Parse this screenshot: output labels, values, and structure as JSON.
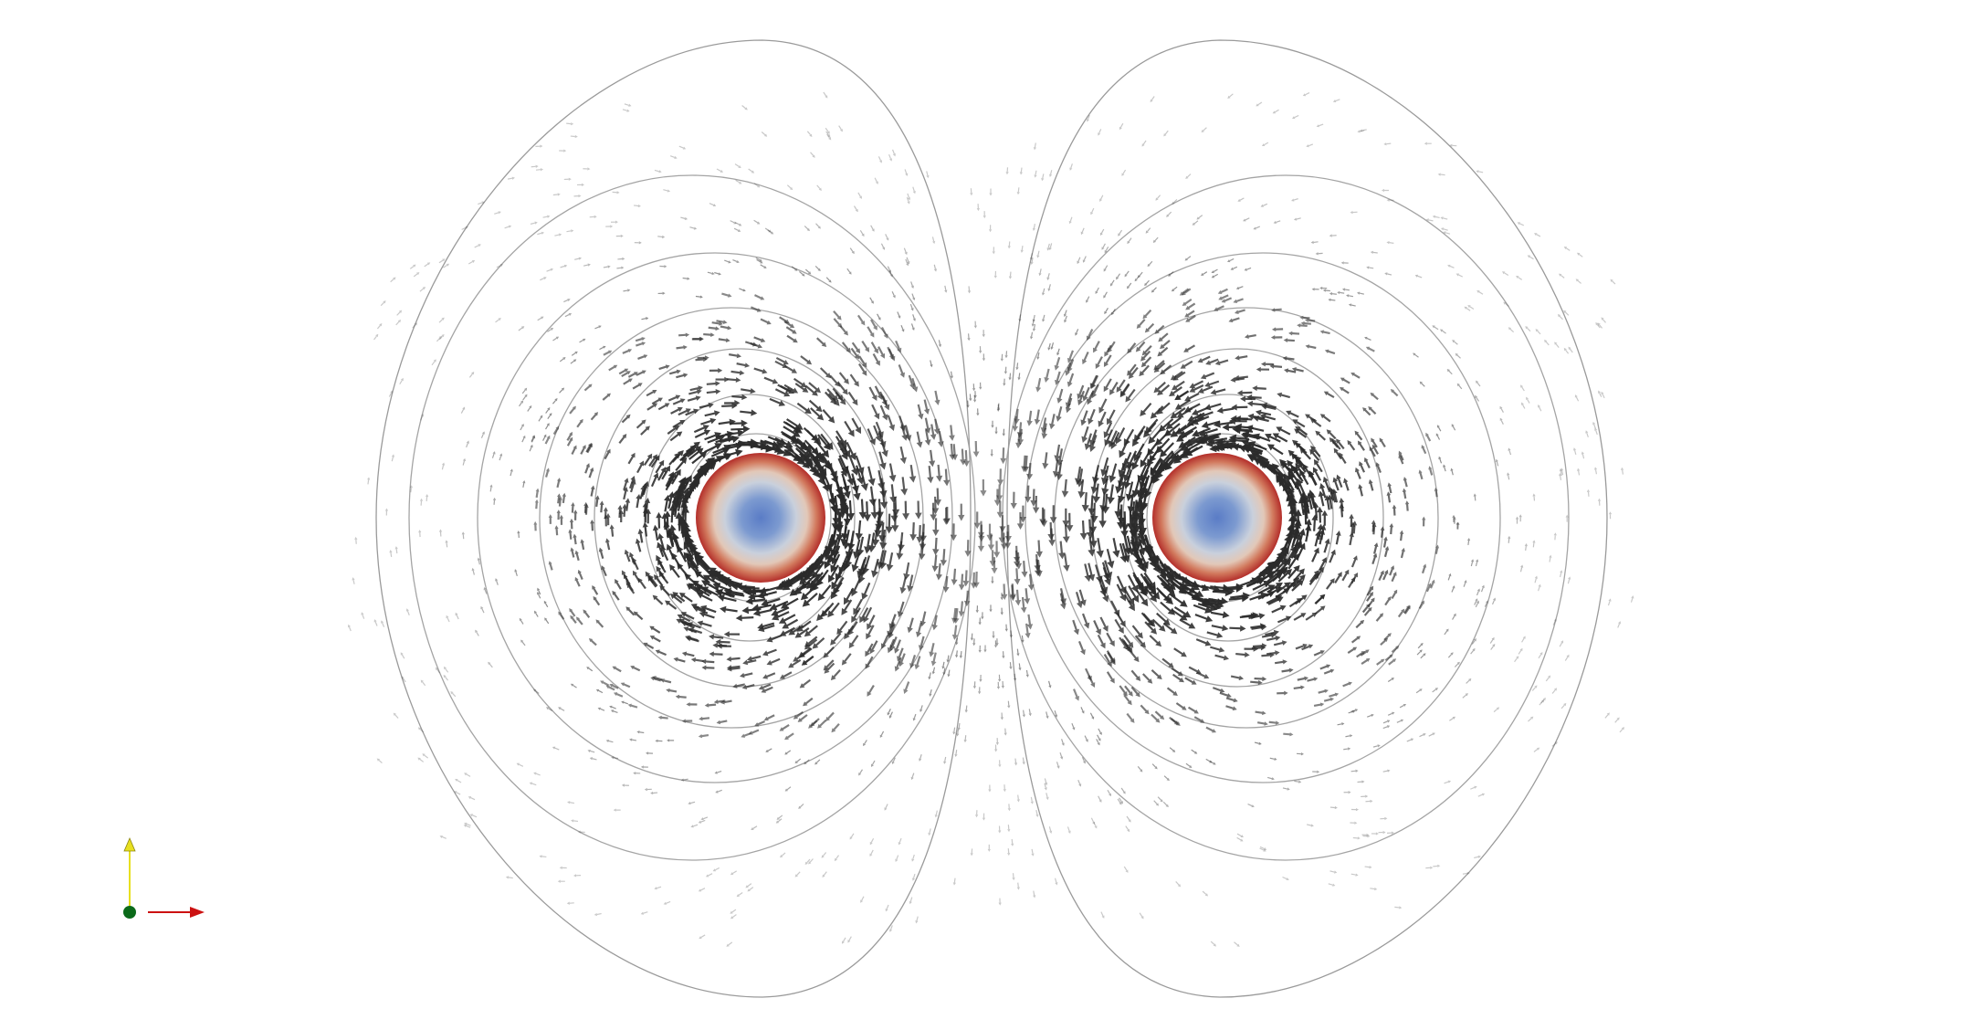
{
  "viewport": {
    "background": "#ffffff"
  },
  "colors": {
    "field_line": "#9a9a9a",
    "arrow": "#2b2b2b",
    "conductor_center": "#5a7cc6",
    "conductor_mid": "#d8d2cc",
    "conductor_edge": "#b83a30",
    "axis_x": "#cc1111",
    "axis_y": "#e8e020",
    "axis_origin": "#0b6a1a"
  },
  "conductors": [
    {
      "id": "left-conductor"
    },
    {
      "id": "right-conductor"
    }
  ],
  "orientation_widget": {
    "x_arrow": "x-axis-arrow",
    "y_arrow": "y-axis-arrow",
    "origin": "origin-dot"
  }
}
